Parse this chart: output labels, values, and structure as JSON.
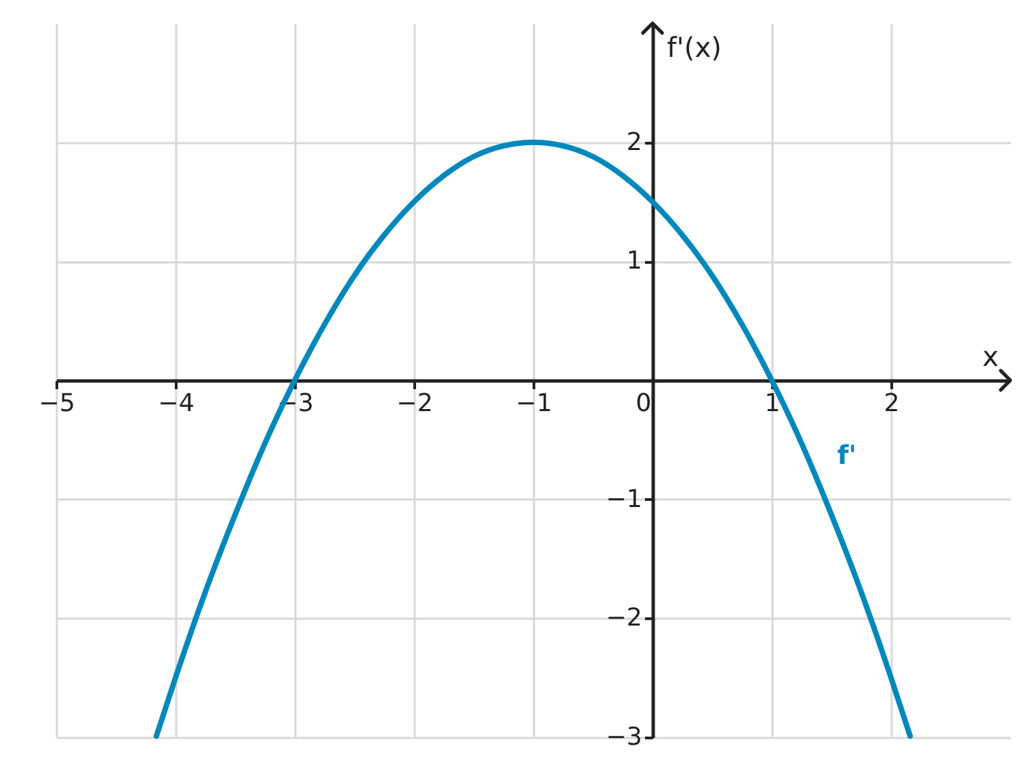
{
  "chart_data": {
    "type": "line",
    "xlabel": "x",
    "ylabel": "f'(x)",
    "x": [
      -4.16,
      -4,
      -3.75,
      -3.5,
      -3.25,
      -3,
      -2.75,
      -2.5,
      -2.25,
      -2,
      -1.75,
      -1.5,
      -1.25,
      -1,
      -0.75,
      -0.5,
      -0.25,
      0,
      0.25,
      0.5,
      0.75,
      1,
      1.25,
      1.5,
      1.75,
      2,
      2.16
    ],
    "series": [
      {
        "name": "f'",
        "color": "#0088bb",
        "values": [
          -2.99,
          -2.5,
          -1.78,
          -1.13,
          -0.53,
          0,
          0.47,
          0.88,
          1.22,
          1.5,
          1.72,
          1.88,
          1.97,
          2,
          1.97,
          1.88,
          1.72,
          1.5,
          1.22,
          0.88,
          0.47,
          0,
          -0.53,
          -1.13,
          -1.78,
          -2.5,
          -2.99
        ]
      }
    ],
    "xlim": [
      -5,
      3
    ],
    "ylim": [
      -3,
      3
    ],
    "xticks": [
      {
        "value": -5,
        "label": "−5"
      },
      {
        "value": -4,
        "label": "−4"
      },
      {
        "value": -3,
        "label": "−3"
      },
      {
        "value": -2,
        "label": "−2"
      },
      {
        "value": -1,
        "label": "−1"
      },
      0,
      1,
      2
    ],
    "yticks": [
      {
        "value": -3,
        "label": "−3"
      },
      {
        "value": -2,
        "label": "−2"
      },
      {
        "value": -1,
        "label": "−1"
      },
      1,
      2
    ],
    "grid": true,
    "line_style": "solid"
  }
}
